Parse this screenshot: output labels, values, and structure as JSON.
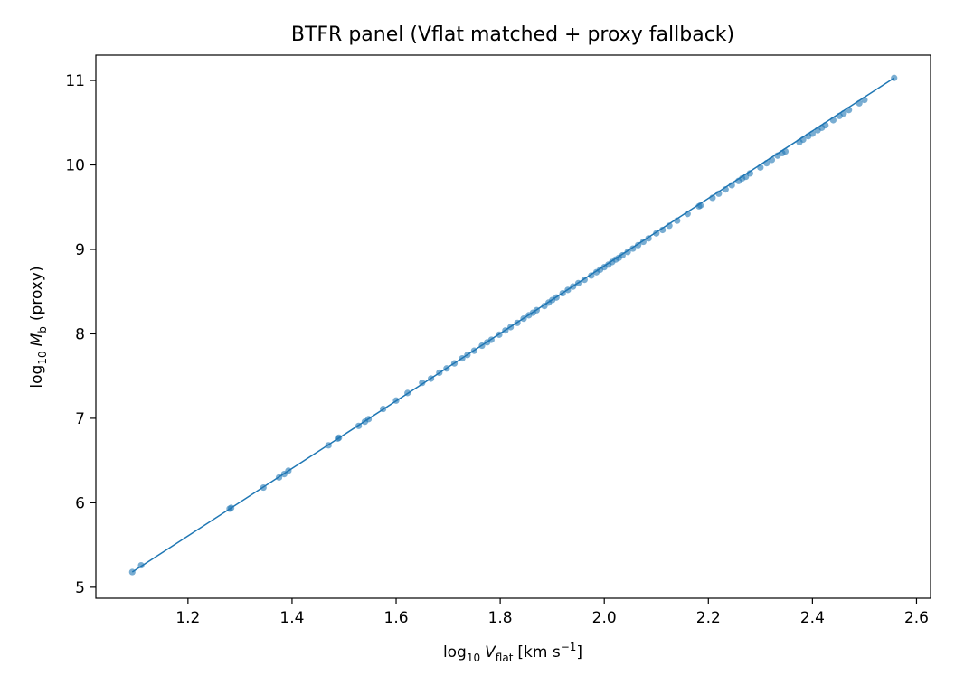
{
  "chart_data": {
    "type": "scatter",
    "title": "BTFR panel (Vflat matched + proxy fallback)",
    "xlabel": {
      "prefix": "log",
      "prefix_sub": "10",
      "var": "V",
      "var_sub": "flat",
      "unit_open": "[km s",
      "unit_sup": "−1",
      "unit_close": "]"
    },
    "ylabel": {
      "prefix": "log",
      "prefix_sub": "10",
      "var": "M",
      "var_sub": "b",
      "suffix": "(proxy)"
    },
    "xlim": [
      1.023,
      2.627
    ],
    "ylim": [
      4.87,
      11.3
    ],
    "xticks": [
      1.2,
      1.4,
      1.6,
      1.8,
      2.0,
      2.2,
      2.4,
      2.6
    ],
    "xtick_labels": [
      "1.2",
      "1.4",
      "1.6",
      "1.8",
      "2.0",
      "2.2",
      "2.4",
      "2.6"
    ],
    "yticks": [
      5,
      6,
      7,
      8,
      9,
      10,
      11
    ],
    "ytick_labels": [
      "5",
      "6",
      "7",
      "8",
      "9",
      "10",
      "11"
    ],
    "grid": false,
    "color": "#1f77b4",
    "line": {
      "x": [
        1.093,
        2.557
      ],
      "y": [
        5.18,
        11.03
      ]
    },
    "series": [
      {
        "x": [
          1.093,
          1.11,
          1.28,
          1.283,
          1.345,
          1.375,
          1.385,
          1.393,
          1.47,
          1.488,
          1.49,
          1.528,
          1.54,
          1.547,
          1.575,
          1.6,
          1.622,
          1.65,
          1.667,
          1.683,
          1.697,
          1.712,
          1.727,
          1.737,
          1.75,
          1.765,
          1.775,
          1.783,
          1.798,
          1.81,
          1.82,
          1.833,
          1.845,
          1.855,
          1.863,
          1.87,
          1.885,
          1.893,
          1.9,
          1.908,
          1.92,
          1.93,
          1.94,
          1.95,
          1.962,
          1.975,
          1.985,
          1.992,
          2.0,
          2.008,
          2.015,
          2.022,
          2.028,
          2.035,
          2.045,
          2.055,
          2.065,
          2.075,
          2.085,
          2.1,
          2.112,
          2.125,
          2.14,
          2.16,
          2.182,
          2.185,
          2.208,
          2.22,
          2.233,
          2.245,
          2.258,
          2.265,
          2.272,
          2.28,
          2.3,
          2.312,
          2.322,
          2.333,
          2.342,
          2.348,
          2.375,
          2.382,
          2.392,
          2.4,
          2.41,
          2.418,
          2.425,
          2.44,
          2.452,
          2.46,
          2.47,
          2.49,
          2.5,
          2.557
        ],
        "y": [
          5.18,
          5.26,
          5.93,
          5.94,
          6.18,
          6.3,
          6.34,
          6.38,
          6.68,
          6.76,
          6.77,
          6.91,
          6.96,
          6.99,
          7.11,
          7.21,
          7.3,
          7.42,
          7.47,
          7.54,
          7.59,
          7.65,
          7.71,
          7.75,
          7.8,
          7.86,
          7.9,
          7.93,
          7.99,
          8.04,
          8.08,
          8.13,
          8.18,
          8.22,
          8.25,
          8.28,
          8.33,
          8.37,
          8.4,
          8.43,
          8.48,
          8.52,
          8.56,
          8.6,
          8.64,
          8.69,
          8.73,
          8.76,
          8.79,
          8.82,
          8.85,
          8.88,
          8.9,
          8.93,
          8.97,
          9.01,
          9.05,
          9.09,
          9.13,
          9.19,
          9.23,
          9.28,
          9.34,
          9.42,
          9.51,
          9.52,
          9.61,
          9.66,
          9.71,
          9.76,
          9.81,
          9.84,
          9.86,
          9.9,
          9.97,
          10.02,
          10.06,
          10.11,
          10.14,
          10.16,
          10.27,
          10.3,
          10.34,
          10.37,
          10.41,
          10.44,
          10.47,
          10.53,
          10.58,
          10.61,
          10.65,
          10.73,
          10.77,
          11.03
        ]
      }
    ]
  }
}
